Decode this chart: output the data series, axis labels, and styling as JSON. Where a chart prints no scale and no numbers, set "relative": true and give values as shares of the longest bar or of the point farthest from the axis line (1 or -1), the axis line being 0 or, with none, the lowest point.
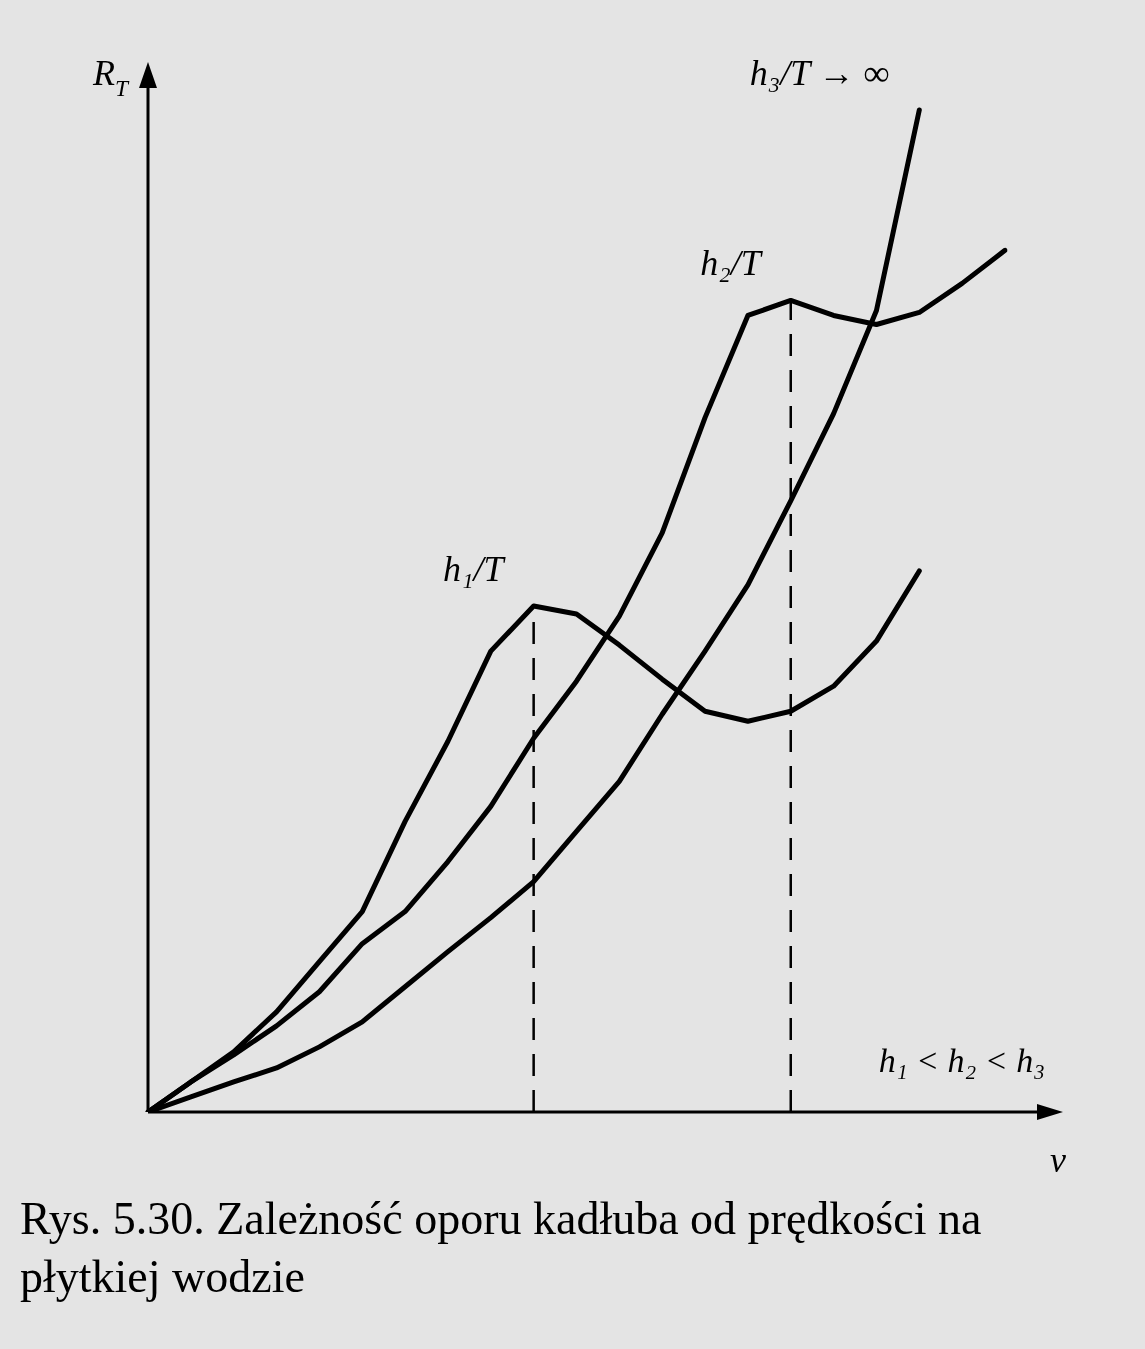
{
  "chart_data": {
    "type": "line",
    "relative": true,
    "ylabel": "R$_{T}$",
    "xlabel": "v",
    "tick_labels": false,
    "marker": "none",
    "line_style": "solid",
    "categories": [
      null,
      null,
      null,
      null,
      null,
      null,
      null,
      null,
      null,
      null,
      null,
      null,
      null,
      null,
      null,
      null,
      null,
      null,
      null,
      null,
      null
    ],
    "series": [
      {
        "name": "h₁/T",
        "color": "#000000",
        "values": [
          0,
          0.03,
          0.06,
          0.1,
          0.15,
          0.2,
          0.29,
          0.37,
          0.46,
          0.505,
          0.497,
          0.466,
          0.432,
          0.4,
          0.39,
          0.4,
          0.425,
          0.47,
          0.54,
          null,
          null
        ]
      },
      {
        "name": "h₂/T",
        "color": "#000000",
        "values": [
          0,
          0.03,
          0.057,
          0.086,
          0.12,
          0.168,
          0.2,
          0.25,
          0.305,
          0.373,
          0.43,
          0.495,
          0.578,
          0.693,
          0.795,
          0.81,
          0.795,
          0.786,
          0.798,
          0.827,
          0.86
        ]
      },
      {
        "name": "h₃/T → ∞",
        "color": "#000000",
        "values": [
          0,
          0.015,
          0.03,
          0.044,
          0.065,
          0.09,
          0.125,
          0.16,
          0.194,
          0.23,
          0.28,
          0.33,
          0.397,
          0.46,
          0.526,
          0.61,
          0.697,
          0.8,
          1,
          null,
          null
        ]
      }
    ],
    "annotations": [
      "h₁ < h₂ < h₃",
      "Rys. 5.30. Zależność oporu kadłuba od prędkości na płytkiej wodzie"
    ]
  }
}
